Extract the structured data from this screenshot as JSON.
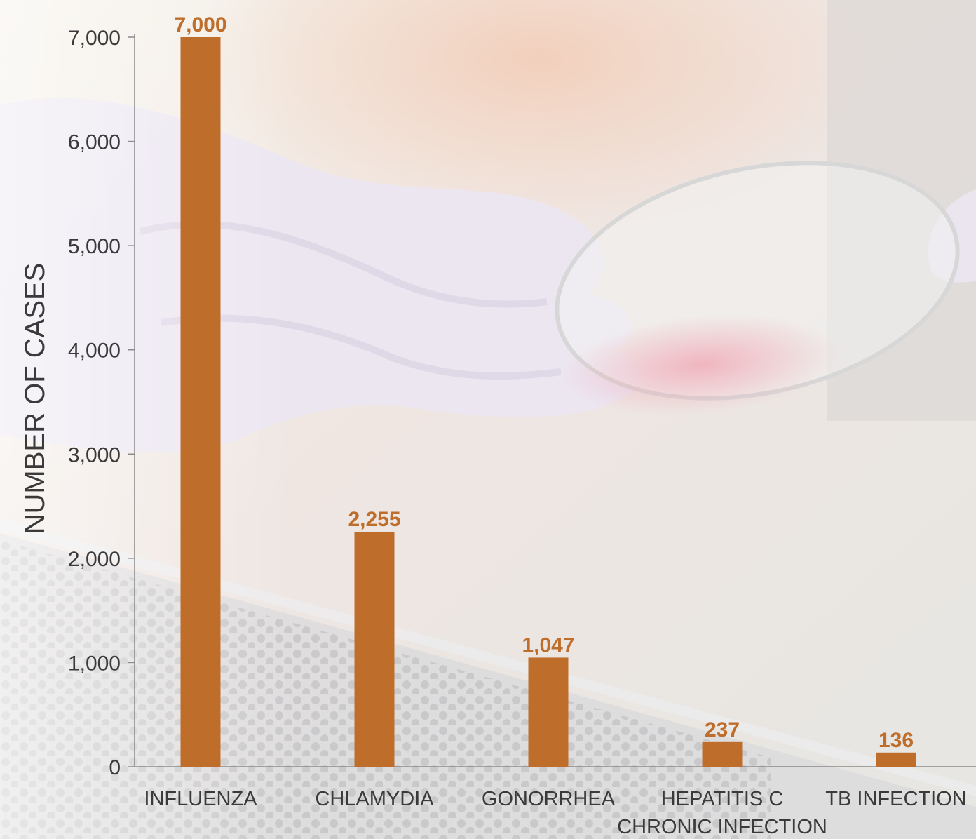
{
  "chart_data": {
    "type": "bar",
    "categories": [
      "INFLUENZA",
      "CHLAMYDIA",
      "GONORRHEA",
      "HEPATITIS C\nCHRONIC INFECTION",
      "TB INFECTION"
    ],
    "values": [
      7000,
      2255,
      1047,
      237,
      136
    ],
    "value_labels": [
      "7,000",
      "2,255",
      "1,047",
      "237",
      "136"
    ],
    "title": "",
    "xlabel": "",
    "ylabel": "NUMBER OF CASES",
    "ylim": [
      0,
      7000
    ],
    "yticks": [
      0,
      1000,
      2000,
      3000,
      4000,
      5000,
      6000,
      7000
    ],
    "ytick_labels": [
      "0",
      "1,000",
      "2,000",
      "3,000",
      "4,000",
      "5,000",
      "6,000",
      "7,000"
    ],
    "grid": false,
    "legend": "none",
    "bar_color": "#bf6d2b",
    "label_color": "#bf6d2b",
    "axis_color": "#8a8a8a",
    "background": "lab-photo-gloved-hand-petri-dish"
  }
}
